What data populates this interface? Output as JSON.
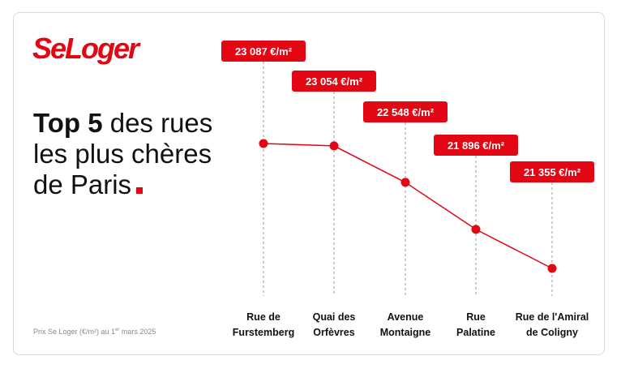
{
  "brand": {
    "logo_text": "SeLoger",
    "accent_color": "#e30613"
  },
  "title": {
    "bold": "Top 5",
    "rest_line1": " des rues",
    "line2": "les plus chères",
    "line3": "de Paris"
  },
  "source": {
    "prefix": "Prix Se Loger (€/m²) au 1",
    "sup": "er",
    "suffix": " mars 2025"
  },
  "chart_data": {
    "type": "line",
    "categories": [
      "Rue de Furstemberg",
      "Quai des Orfèvres",
      "Avenue Montaigne",
      "Rue Palatine",
      "Rue de l'Amiral de Coligny"
    ],
    "category_lines": [
      [
        "Rue de",
        "Furstemberg"
      ],
      [
        "Quai des",
        "Orfèvres"
      ],
      [
        "Avenue",
        "Montaigne"
      ],
      [
        "Rue",
        "Palatine"
      ],
      [
        "Rue de l'Amiral",
        "de Coligny"
      ]
    ],
    "values": [
      23087,
      23054,
      22548,
      21896,
      21355
    ],
    "value_labels": [
      "23 087 €/m²",
      "23 054 €/m²",
      "22 548 €/m²",
      "21 896 €/m²",
      "21 355 €/m²"
    ],
    "unit": "€/m²",
    "line_color": "#e30613",
    "grid": false
  }
}
